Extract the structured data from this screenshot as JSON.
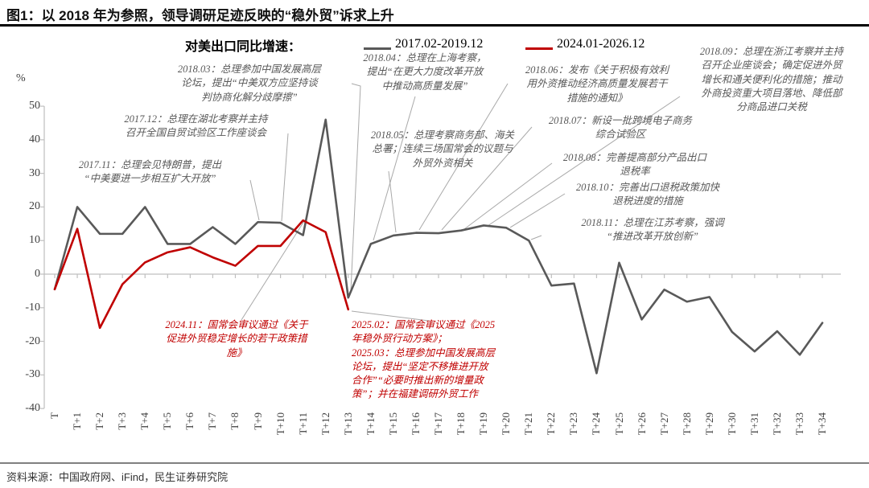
{
  "title": "图1：以 2018 年为参照，领导调研足迹反映的“稳外贸”诉求上升",
  "source": "资料来源：中国政府网、iFind，民生证券研究院",
  "legend": {
    "heading": "对美出口同比增速：",
    "items": [
      {
        "label": "2017.02-2019.12",
        "color": "#595959"
      },
      {
        "label": "2024.01-2026.12",
        "color": "#c00000"
      }
    ]
  },
  "chart_data": {
    "type": "line",
    "title": "图1：以 2018 年为参照，领导调研足迹反映的“稳外贸”诉求上升",
    "ylabel": "%",
    "ylim": [
      -40,
      50
    ],
    "y_ticks": [
      50,
      40,
      30,
      20,
      10,
      0,
      -10,
      -20,
      -30,
      -40
    ],
    "grid": false,
    "legend_position": "top",
    "x": [
      "T",
      "T+1",
      "T+2",
      "T+3",
      "T+4",
      "T+5",
      "T+6",
      "T+7",
      "T+8",
      "T+9",
      "T+10",
      "T+11",
      "T+12",
      "T+13",
      "T+14",
      "T+15",
      "T+16",
      "T+17",
      "T+18",
      "T+19",
      "T+20",
      "T+21",
      "T+22",
      "T+23",
      "T+24",
      "T+25",
      "T+26",
      "T+27",
      "T+28",
      "T+29",
      "T+30",
      "T+31",
      "T+32",
      "T+33",
      "T+34"
    ],
    "series": [
      {
        "name": "2017.02-2019.12",
        "color": "#595959",
        "values": [
          -4.5,
          20,
          12,
          12,
          20,
          9,
          9,
          14,
          9,
          15.5,
          15.3,
          11.6,
          46,
          -7,
          9,
          11.5,
          12.3,
          12.2,
          13,
          14.5,
          13.8,
          10,
          -3.4,
          -2.8,
          -29.5,
          3.4,
          -13.5,
          -4.6,
          -8.2,
          -6.8,
          -17.2,
          -23,
          -17,
          -24,
          -14.5
        ]
      },
      {
        "name": "2024.01-2026.12",
        "color": "#c00000",
        "values": [
          -4.5,
          13.5,
          -16,
          -3,
          3.5,
          6.5,
          8,
          5,
          2.5,
          8.4,
          8.4,
          16,
          12.5,
          -10.5
        ]
      }
    ]
  },
  "annotations": [
    {
      "id": "a2018_03",
      "color": "#595959",
      "text": "2018.03：总理参加中国发展高层\n论坛，提出“中美双方应坚持谈\n判协商化解分歧摩擦”"
    },
    {
      "id": "a2017_12",
      "color": "#595959",
      "text": "2017.12：总理在湖北考察并主持\n召开全国自贸试验区工作座谈会"
    },
    {
      "id": "a2017_11",
      "color": "#595959",
      "text": "2017.11：总理会见特朗普，提出\n“中美要进一步相互扩大开放”"
    },
    {
      "id": "a2018_04",
      "color": "#595959",
      "text": "2018.04：总理在上海考察，\n提出“在更大力度改革开放\n中推动高质量发展”"
    },
    {
      "id": "a2018_05",
      "color": "#595959",
      "text": "2018.05：总理考察商务部、海关\n总署；连续三场国常会的议题与\n外贸外资相关"
    },
    {
      "id": "a2018_06",
      "color": "#595959",
      "text": "2018.06：发布《关于积极有效利\n用外资推动经济高质量发展若干\n措施的通知》"
    },
    {
      "id": "a2018_07",
      "color": "#595959",
      "text": "2018.07：新设一批跨境电子商务\n综合试验区"
    },
    {
      "id": "a2018_08",
      "color": "#595959",
      "text": "2018.08：完善提高部分产品出口\n退税率"
    },
    {
      "id": "a2018_09",
      "color": "#595959",
      "text": "2018.09：总理在浙江考察并主持\n召开企业座谈会；确定促进外贸\n增长和通关便利化的措施；推动\n外商投资重大项目落地、降低部\n分商品进口关税"
    },
    {
      "id": "a2018_10",
      "color": "#595959",
      "text": "2018.10：完善出口退税政策加快\n退税进度的措施"
    },
    {
      "id": "a2018_11",
      "color": "#595959",
      "text": "2018.11：总理在江苏考察，强调\n“推进改革开放创新”"
    },
    {
      "id": "a2024_11",
      "color": "#c00000",
      "text": "2024.11：国常会审议通过《关于\n促进外贸稳定增长的若干政策措\n施》"
    },
    {
      "id": "a2025_02",
      "color": "#c00000",
      "text": "2025.02：国常会审议通过《2025\n年稳外贸行动方案》；\n2025.03：总理参加中国发展高层\n论坛，提出“坚定不移推进开放\n合作”“必要时推出新的增量政\n策”；并在福建调研外贸工作"
    }
  ]
}
